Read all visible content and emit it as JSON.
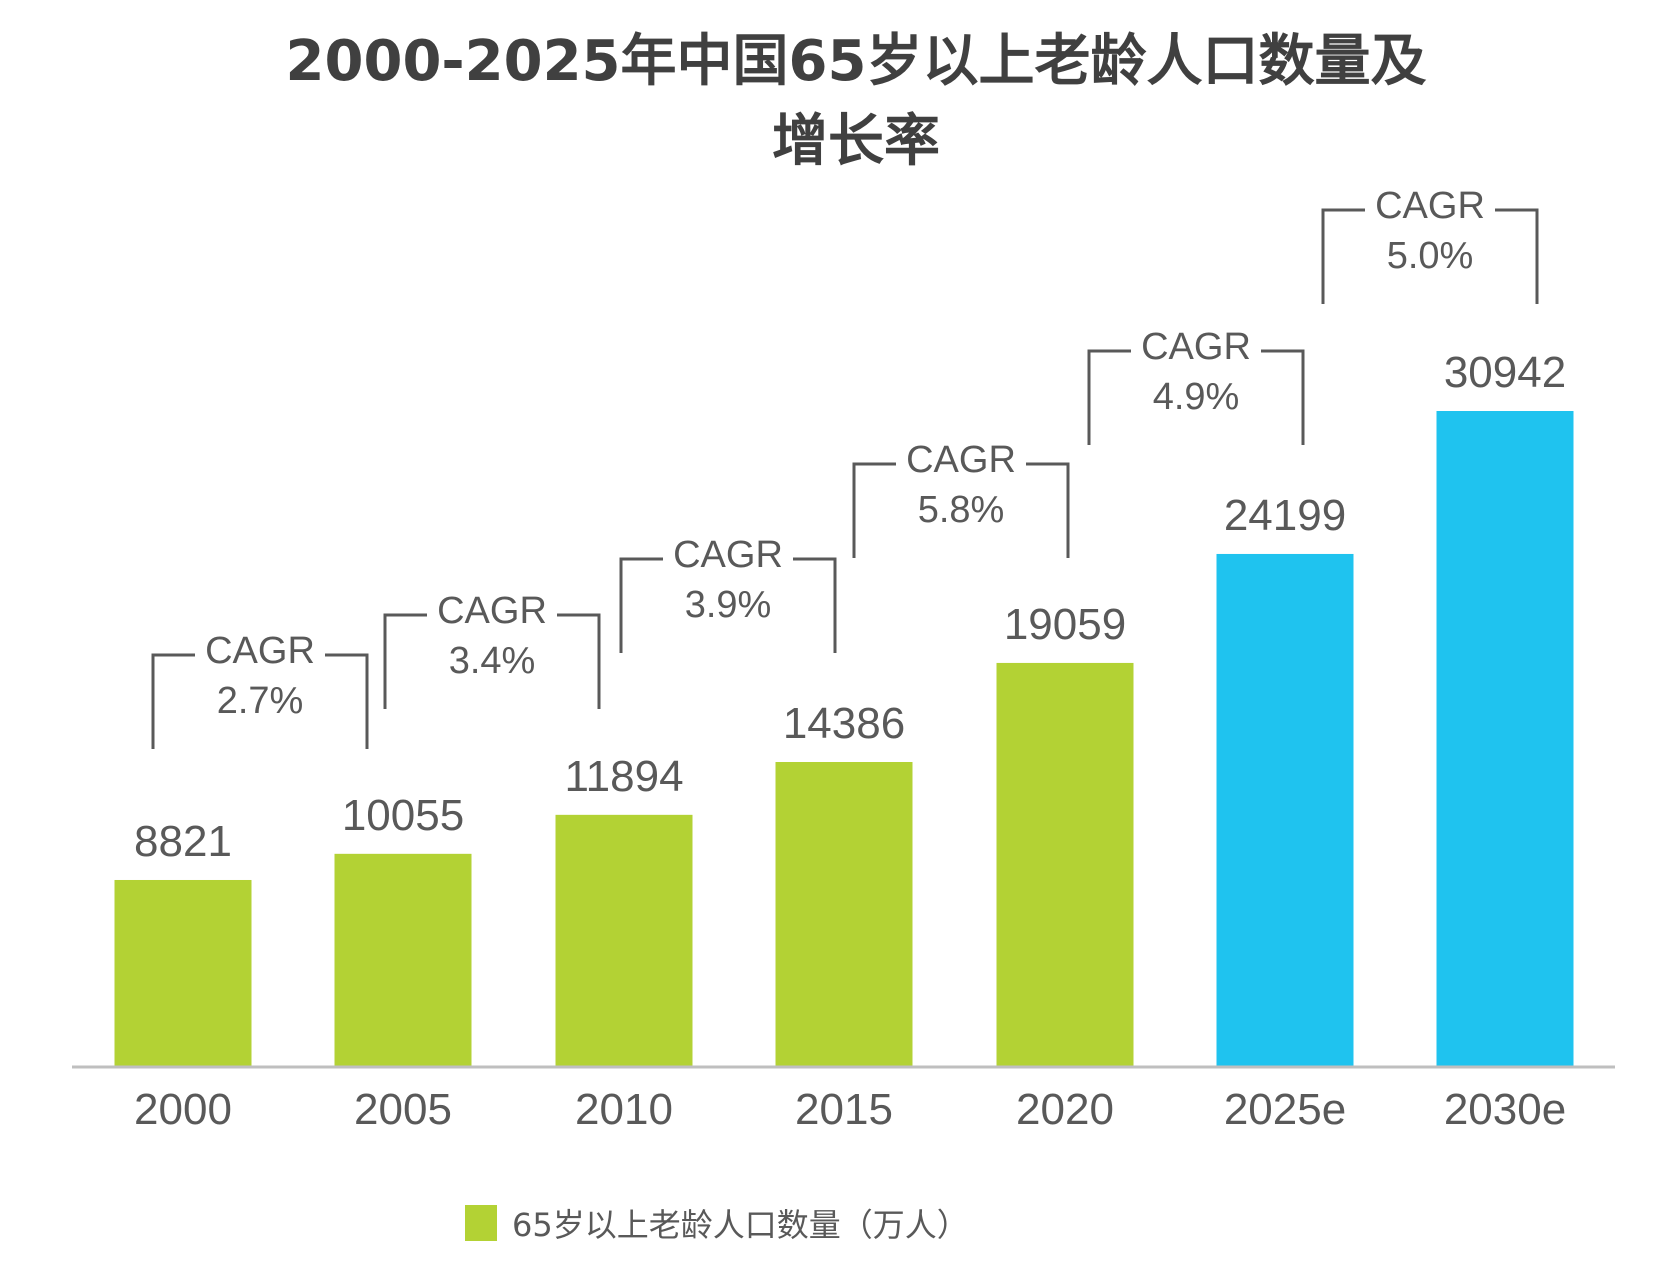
{
  "chart_data": {
    "type": "bar",
    "title": "2000-2025年中国65岁以上老龄人口数量及",
    "title_line2": "增长率",
    "categories": [
      "2000",
      "2005",
      "2010",
      "2015",
      "2020",
      "2025e",
      "2030e"
    ],
    "series": [
      {
        "name": "65岁以上老龄人口数量（万人）",
        "values": [
          8821,
          10055,
          11894,
          14386,
          19059,
          24199,
          30942
        ]
      }
    ],
    "bar_colors": [
      "#b3d234",
      "#b3d234",
      "#b3d234",
      "#b3d234",
      "#b3d234",
      "#1fc3ef",
      "#1fc3ef"
    ],
    "cagr_label": "CAGR",
    "cagr": [
      "2.7%",
      "3.4%",
      "3.9%",
      "5.8%",
      "4.9%",
      "5.0%"
    ],
    "ylim": [
      0,
      31000
    ],
    "grid": false,
    "legend_position": "bottom",
    "colors": {
      "actual": "#b3d234",
      "estimate": "#1fc3ef",
      "text": "#595959",
      "axis": "#bfbfbf"
    }
  }
}
